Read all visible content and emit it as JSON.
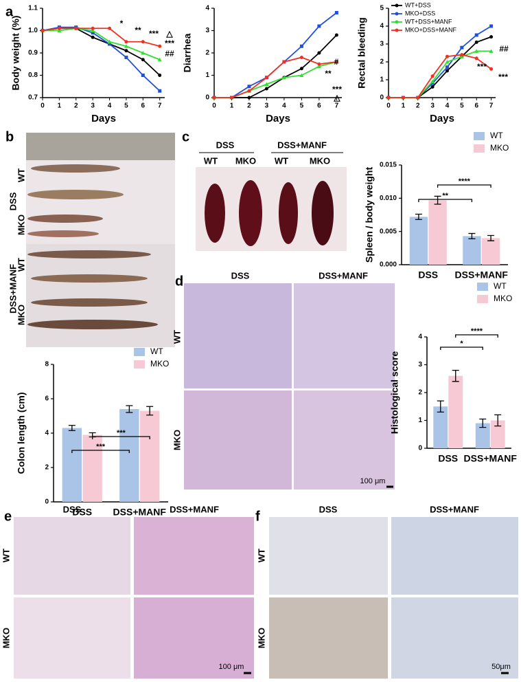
{
  "chart_data": [
    {
      "type": "line",
      "ylabel": "Body weight (%)",
      "xlabel": "Days",
      "x": [
        0,
        1,
        2,
        3,
        4,
        5,
        6,
        7
      ],
      "xlim": [
        0,
        7.3
      ],
      "xticks": [
        0,
        1,
        2,
        3,
        4,
        5,
        6,
        7
      ],
      "ylim": [
        0.7,
        1.1
      ],
      "yticks": [
        0.7,
        0.8,
        0.9,
        {
          "value": 1,
          "label": "1.0"
        },
        1.1
      ],
      "series": [
        {
          "name": "WT+DSS",
          "color": "#000000",
          "values": [
            1.0,
            1.01,
            1.01,
            0.97,
            0.94,
            0.91,
            0.87,
            0.8
          ]
        },
        {
          "name": "MKO+DSS",
          "color": "#1f4fe0",
          "values": [
            1.0,
            1.015,
            1.015,
            0.99,
            0.94,
            0.88,
            0.8,
            0.73
          ]
        },
        {
          "name": "WT+DSS+MANF",
          "color": "#33dd33",
          "values": [
            1.0,
            1.0,
            1.01,
            1.0,
            0.95,
            0.93,
            0.9,
            0.87
          ]
        },
        {
          "name": "MKO+DSS+MANF",
          "color": "#f03020",
          "values": [
            1.0,
            1.01,
            1.01,
            1.01,
            1.01,
            0.95,
            0.95,
            0.93
          ]
        }
      ],
      "annotations": [
        "*",
        "**",
        "***",
        "△",
        "***",
        "##"
      ]
    },
    {
      "type": "line",
      "ylabel": "Diarrhea",
      "xlabel": "Days",
      "x": [
        0,
        1,
        2,
        3,
        4,
        5,
        6,
        7
      ],
      "xlim": [
        0,
        7.3
      ],
      "xticks": [
        0,
        1,
        2,
        3,
        4,
        5,
        6,
        7
      ],
      "ylim": [
        0,
        4
      ],
      "yticks": [
        0,
        1,
        2,
        3,
        4
      ],
      "series": [
        {
          "name": "WT+DSS",
          "color": "#000000",
          "values": [
            0,
            0,
            0,
            0.4,
            0.9,
            1.3,
            2.0,
            2.8
          ]
        },
        {
          "name": "MKO+DSS",
          "color": "#1f4fe0",
          "values": [
            0,
            0,
            0.5,
            0.9,
            1.6,
            2.3,
            3.2,
            3.8
          ]
        },
        {
          "name": "WT+DSS+MANF",
          "color": "#33dd33",
          "values": [
            0,
            0,
            0.3,
            0.6,
            0.9,
            1.0,
            1.4,
            1.6
          ]
        },
        {
          "name": "MKO+DSS+MANF",
          "color": "#f03020",
          "values": [
            0,
            0,
            0.3,
            0.9,
            1.6,
            1.8,
            1.5,
            1.6
          ]
        }
      ],
      "annotations": [
        "**",
        "#",
        "***",
        "△"
      ]
    },
    {
      "type": "line",
      "ylabel": "Rectal bleeding",
      "xlabel": "Days",
      "x": [
        0,
        1,
        2,
        3,
        4,
        5,
        6,
        7
      ],
      "xlim": [
        0,
        7.3
      ],
      "xticks": [
        0,
        1,
        2,
        3,
        4,
        5,
        6,
        7
      ],
      "ylim": [
        0,
        5
      ],
      "yticks": [
        0,
        1,
        2,
        3,
        4,
        5
      ],
      "legend": "upper-left",
      "series": [
        {
          "name": "WT+DSS",
          "color": "#000000",
          "values": [
            0,
            0,
            0,
            0.6,
            1.5,
            2.3,
            3.1,
            3.4
          ]
        },
        {
          "name": "MKO+DSS",
          "color": "#1f4fe0",
          "values": [
            0,
            0,
            0,
            0.8,
            1.7,
            2.8,
            3.5,
            4.0
          ]
        },
        {
          "name": "WT+DSS+MANF",
          "color": "#33dd33",
          "values": [
            0,
            0,
            0,
            0.9,
            2.0,
            2.3,
            2.6,
            2.6
          ]
        },
        {
          "name": "MKO+DSS+MANF",
          "color": "#f03020",
          "values": [
            0,
            0,
            0,
            1.2,
            2.3,
            2.4,
            2.2,
            1.6
          ]
        }
      ],
      "annotations": [
        "##",
        "***",
        "***"
      ]
    },
    {
      "type": "bar",
      "ylabel": "Colon length (cm)",
      "categories": [
        "DSS",
        "DSS+MANF"
      ],
      "ylim": [
        0,
        8
      ],
      "yticks": [
        0,
        2,
        4,
        6,
        8
      ],
      "legend": "top-right",
      "series": [
        {
          "name": "WT",
          "color": "#a9c4e6",
          "values": [
            4.3,
            5.4
          ],
          "errors": [
            0.15,
            0.2
          ]
        },
        {
          "name": "MKO",
          "color": "#f7c9d4",
          "values": [
            3.9,
            5.3
          ],
          "errors": [
            0.12,
            0.25
          ]
        }
      ],
      "annotations": [
        "***",
        "***"
      ]
    },
    {
      "type": "bar",
      "ylabel": "Spleen / body weight",
      "categories": [
        "DSS",
        "DSS+MANF"
      ],
      "ylim": [
        0,
        0.015
      ],
      "yticks": [
        {
          "value": 0,
          "label": "0.000"
        },
        0.005,
        {
          "value": 0.01,
          "label": "0.010"
        },
        0.015
      ],
      "legend": "top-right",
      "series": [
        {
          "name": "WT",
          "color": "#a9c4e6",
          "values": [
            0.0072,
            0.0043
          ],
          "errors": [
            0.0004,
            0.0004
          ]
        },
        {
          "name": "MKO",
          "color": "#f7c9d4",
          "values": [
            0.0097,
            0.004
          ],
          "errors": [
            0.0006,
            0.0004
          ]
        }
      ],
      "annotations": [
        "**",
        "****"
      ]
    },
    {
      "type": "bar",
      "ylabel": "Histological score",
      "categories": [
        "DSS",
        "DSS+MANF"
      ],
      "ylim": [
        0,
        4
      ],
      "yticks": [
        0,
        1,
        2,
        3,
        4
      ],
      "legend": "top-right",
      "series": [
        {
          "name": "WT",
          "color": "#a9c4e6",
          "values": [
            1.5,
            0.9
          ],
          "errors": [
            0.2,
            0.15
          ]
        },
        {
          "name": "MKO",
          "color": "#f7c9d4",
          "values": [
            2.6,
            1.0
          ],
          "errors": [
            0.2,
            0.2
          ]
        }
      ],
      "annotations": [
        "*",
        "****"
      ]
    }
  ],
  "figure": {
    "panels": [
      "a",
      "b",
      "c",
      "d",
      "e",
      "f"
    ],
    "colon_photo": {
      "groups": [
        "DSS",
        "DSS+MANF"
      ],
      "genotypes": [
        "WT",
        "MKO",
        "WT",
        "MKO"
      ]
    },
    "spleen_photo": {
      "groups": [
        "DSS",
        "DSS+MANF"
      ],
      "genotypes": [
        "WT",
        "MKO",
        "WT",
        "MKO"
      ]
    },
    "he_stain": {
      "columns": [
        "DSS",
        "DSS+MANF"
      ],
      "rows": [
        "WT",
        "MKO"
      ],
      "scale_bar": "100 μm"
    },
    "pas_stain": {
      "columns": [
        "DSS",
        "DSS+MANF"
      ],
      "rows": [
        "WT",
        "MKO"
      ],
      "scale_bar": "100 μm"
    },
    "ihc_stain": {
      "columns": [
        "DSS",
        "DSS+MANF"
      ],
      "rows": [
        "WT",
        "MKO"
      ],
      "scale_bar": "50μm"
    }
  }
}
